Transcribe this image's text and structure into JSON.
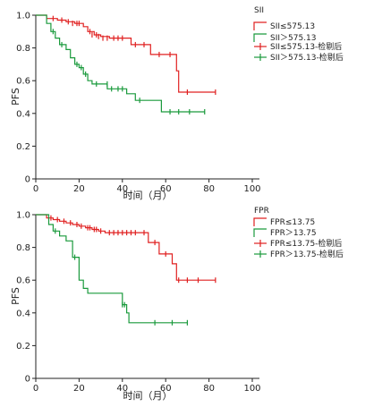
{
  "chart_data": [
    {
      "type": "line",
      "subtype": "kaplan-meier",
      "title": "",
      "xlabel": "时间（月）",
      "ylabel": "PFS",
      "xlim": [
        0,
        100
      ],
      "ylim": [
        0,
        1.0
      ],
      "xticks": [
        "0",
        "20",
        "40",
        "60",
        "80",
        "100"
      ],
      "yticks": [
        "0",
        "0.2",
        "0.4",
        "0.6",
        "0.8",
        "1.0"
      ],
      "grid": false,
      "legend_position": "top-right",
      "legend_title": "SII",
      "legend_labels": [
        "SII≤575.13",
        "SII＞575.13",
        "SII≤575.13-检剔后",
        "SII＞575.13-检剔后"
      ],
      "series": [
        {
          "name": "SII≤575.13",
          "color": "#e02020",
          "steps": [
            [
              0,
              1.0
            ],
            [
              5,
              0.98
            ],
            [
              10,
              0.97
            ],
            [
              14,
              0.96
            ],
            [
              18,
              0.95
            ],
            [
              22,
              0.93
            ],
            [
              24,
              0.9
            ],
            [
              27,
              0.88
            ],
            [
              30,
              0.87
            ],
            [
              34,
              0.86
            ],
            [
              44,
              0.82
            ],
            [
              53,
              0.76
            ],
            [
              64,
              0.76
            ],
            [
              65,
              0.66
            ],
            [
              66,
              0.53
            ],
            [
              83,
              0.53
            ]
          ],
          "censored": [
            [
              8,
              0.98
            ],
            [
              12,
              0.97
            ],
            [
              15,
              0.96
            ],
            [
              17,
              0.95
            ],
            [
              19,
              0.95
            ],
            [
              20,
              0.95
            ],
            [
              25,
              0.9
            ],
            [
              26,
              0.88
            ],
            [
              28,
              0.88
            ],
            [
              29,
              0.87
            ],
            [
              31,
              0.86
            ],
            [
              33,
              0.86
            ],
            [
              36,
              0.86
            ],
            [
              38,
              0.86
            ],
            [
              40,
              0.86
            ],
            [
              46,
              0.82
            ],
            [
              50,
              0.82
            ],
            [
              57,
              0.76
            ],
            [
              62,
              0.76
            ],
            [
              70,
              0.53
            ],
            [
              83,
              0.53
            ]
          ]
        },
        {
          "name": "SII＞575.13",
          "color": "#1a9a3c",
          "steps": [
            [
              0,
              1.0
            ],
            [
              5,
              0.95
            ],
            [
              7,
              0.9
            ],
            [
              9,
              0.86
            ],
            [
              11,
              0.82
            ],
            [
              14,
              0.79
            ],
            [
              16,
              0.74
            ],
            [
              18,
              0.7
            ],
            [
              20,
              0.68
            ],
            [
              22,
              0.64
            ],
            [
              24,
              0.6
            ],
            [
              26,
              0.58
            ],
            [
              33,
              0.55
            ],
            [
              42,
              0.52
            ],
            [
              46,
              0.48
            ],
            [
              58,
              0.41
            ],
            [
              78,
              0.41
            ]
          ],
          "censored": [
            [
              8,
              0.9
            ],
            [
              12,
              0.82
            ],
            [
              19,
              0.7
            ],
            [
              21,
              0.68
            ],
            [
              23,
              0.64
            ],
            [
              28,
              0.58
            ],
            [
              33,
              0.58
            ],
            [
              35,
              0.55
            ],
            [
              38,
              0.55
            ],
            [
              40,
              0.55
            ],
            [
              48,
              0.48
            ],
            [
              62,
              0.41
            ],
            [
              66,
              0.41
            ],
            [
              71,
              0.41
            ],
            [
              78,
              0.41
            ]
          ]
        }
      ]
    },
    {
      "type": "line",
      "subtype": "kaplan-meier",
      "title": "",
      "xlabel": "时间（月）",
      "ylabel": "PFS",
      "xlim": [
        0,
        100
      ],
      "ylim": [
        0,
        1.0
      ],
      "xticks": [
        "0",
        "20",
        "40",
        "60",
        "80",
        "100"
      ],
      "yticks": [
        "0",
        "0.2",
        "0.4",
        "0.6",
        "0.8",
        "1.0"
      ],
      "grid": false,
      "legend_position": "top-right",
      "legend_title": "FPR",
      "legend_labels": [
        "FPR≤13.75",
        "FPR＞13.75",
        "FPR≤13.75-检剔后",
        "FPR＞13.75-检剔后"
      ],
      "series": [
        {
          "name": "FPR≤13.75",
          "color": "#e02020",
          "steps": [
            [
              0,
              1.0
            ],
            [
              5,
              0.98
            ],
            [
              8,
              0.97
            ],
            [
              11,
              0.96
            ],
            [
              14,
              0.95
            ],
            [
              17,
              0.94
            ],
            [
              20,
              0.93
            ],
            [
              23,
              0.92
            ],
            [
              26,
              0.91
            ],
            [
              29,
              0.9
            ],
            [
              32,
              0.89
            ],
            [
              52,
              0.83
            ],
            [
              57,
              0.76
            ],
            [
              63,
              0.7
            ],
            [
              65,
              0.6
            ],
            [
              83,
              0.6
            ]
          ],
          "censored": [
            [
              7,
              0.98
            ],
            [
              10,
              0.97
            ],
            [
              13,
              0.96
            ],
            [
              16,
              0.95
            ],
            [
              19,
              0.94
            ],
            [
              21,
              0.93
            ],
            [
              24,
              0.92
            ],
            [
              25,
              0.92
            ],
            [
              27,
              0.91
            ],
            [
              28,
              0.91
            ],
            [
              30,
              0.9
            ],
            [
              34,
              0.89
            ],
            [
              36,
              0.89
            ],
            [
              38,
              0.89
            ],
            [
              40,
              0.89
            ],
            [
              42,
              0.89
            ],
            [
              44,
              0.89
            ],
            [
              46,
              0.89
            ],
            [
              50,
              0.89
            ],
            [
              55,
              0.83
            ],
            [
              60,
              0.76
            ],
            [
              66,
              0.6
            ],
            [
              70,
              0.6
            ],
            [
              75,
              0.6
            ],
            [
              83,
              0.6
            ]
          ]
        },
        {
          "name": "FPR＞13.75",
          "color": "#1a9a3c",
          "steps": [
            [
              0,
              1.0
            ],
            [
              6,
              0.94
            ],
            [
              8,
              0.9
            ],
            [
              11,
              0.87
            ],
            [
              14,
              0.84
            ],
            [
              17,
              0.74
            ],
            [
              20,
              0.6
            ],
            [
              22,
              0.55
            ],
            [
              24,
              0.52
            ],
            [
              40,
              0.45
            ],
            [
              42,
              0.4
            ],
            [
              43,
              0.34
            ],
            [
              70,
              0.34
            ]
          ],
          "censored": [
            [
              9,
              0.9
            ],
            [
              18,
              0.74
            ],
            [
              40,
              0.45
            ],
            [
              41,
              0.45
            ],
            [
              55,
              0.34
            ],
            [
              63,
              0.34
            ],
            [
              70,
              0.34
            ]
          ]
        }
      ]
    }
  ]
}
